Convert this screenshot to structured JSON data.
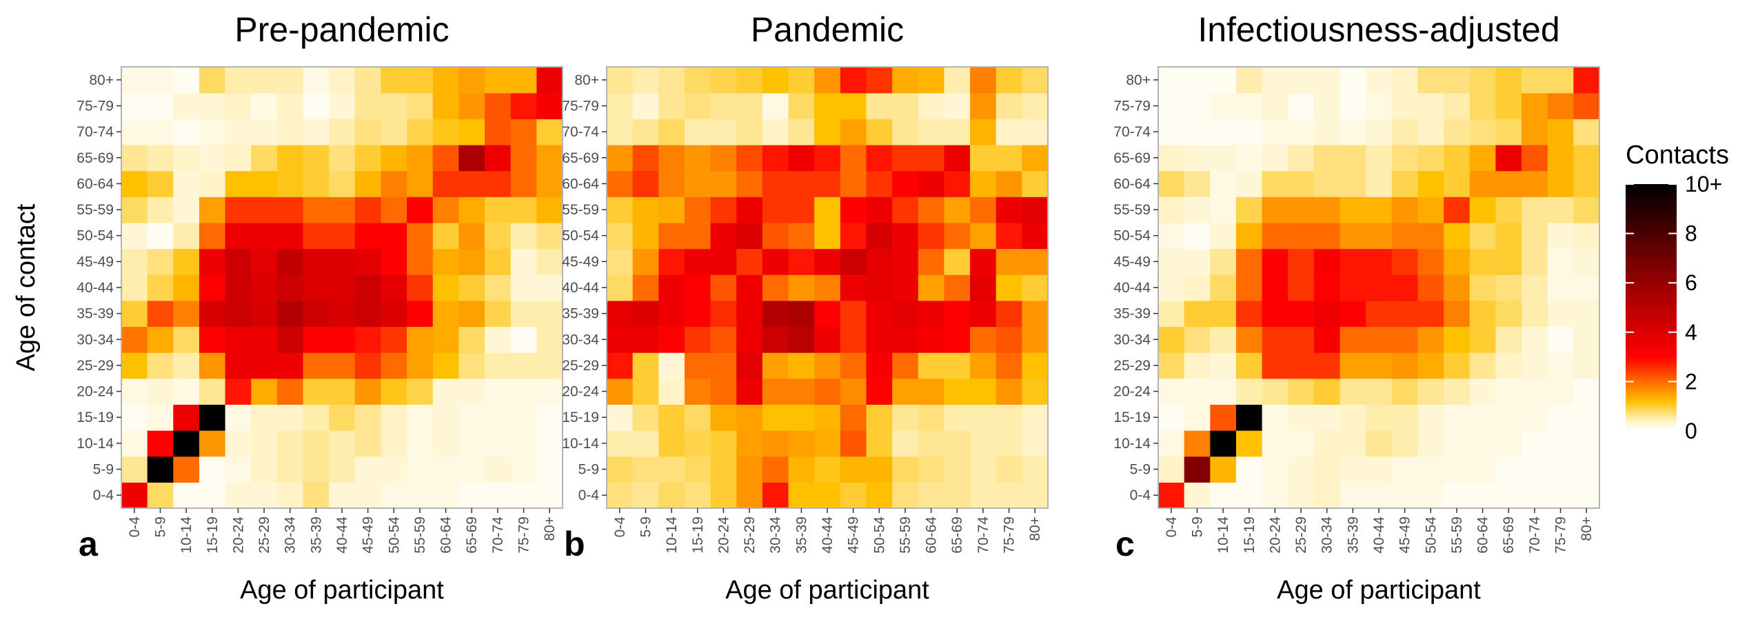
{
  "chart_data": [
    {
      "type": "heatmap",
      "panel_label": "a",
      "title": "Pre-pandemic",
      "xlabel": "Age of participant",
      "ylabel": "Age of contact",
      "x": [
        "0-4",
        "5-9",
        "10-14",
        "15-19",
        "20-24",
        "25-29",
        "30-34",
        "35-39",
        "40-44",
        "45-49",
        "50-54",
        "55-59",
        "60-64",
        "65-69",
        "70-74",
        "75-79",
        "80+"
      ],
      "y": [
        "0-4",
        "5-9",
        "10-14",
        "15-19",
        "20-24",
        "25-29",
        "30-34",
        "35-39",
        "40-44",
        "45-49",
        "50-54",
        "55-59",
        "60-64",
        "65-69",
        "70-74",
        "75-79",
        "80+"
      ],
      "values": [
        [
          3.5,
          0.8,
          0.1,
          0.1,
          0.3,
          0.3,
          0.4,
          0.7,
          0.3,
          0.3,
          0.2,
          0.2,
          0.2,
          0.1,
          0.1,
          0.1,
          0.1
        ],
        [
          0.6,
          10,
          2.0,
          0.1,
          0.2,
          0.4,
          0.5,
          0.6,
          0.5,
          0.3,
          0.3,
          0.2,
          0.2,
          0.2,
          0.3,
          0.2,
          0.1
        ],
        [
          0.2,
          3.0,
          10,
          1.6,
          0.3,
          0.4,
          0.5,
          0.6,
          0.5,
          0.6,
          0.4,
          0.2,
          0.3,
          0.2,
          0.2,
          0.2,
          0.1
        ],
        [
          0.1,
          0.2,
          3.5,
          10,
          0.2,
          0.4,
          0.4,
          0.5,
          0.8,
          0.6,
          0.4,
          0.2,
          0.3,
          0.2,
          0.2,
          0.2,
          0.1
        ],
        [
          0.2,
          0.3,
          0.2,
          0.6,
          2.8,
          1.4,
          2.0,
          1.0,
          1.0,
          1.6,
          1.1,
          0.9,
          0.3,
          0.3,
          0.2,
          0.2,
          0.2
        ],
        [
          1.2,
          0.7,
          0.5,
          1.6,
          3.5,
          3.5,
          3.5,
          2.0,
          2.0,
          2.5,
          2.0,
          1.5,
          1.2,
          0.7,
          0.5,
          0.5,
          0.5
        ],
        [
          1.9,
          1.4,
          0.8,
          3.0,
          3.5,
          3.5,
          4.5,
          3.0,
          3.0,
          2.8,
          2.5,
          1.5,
          1.4,
          0.8,
          0.3,
          0.1,
          0.5
        ],
        [
          1.0,
          2.3,
          1.8,
          4.2,
          4.5,
          4.2,
          5.2,
          4.5,
          4.2,
          4.5,
          4.0,
          3.0,
          1.4,
          1.5,
          0.9,
          0.5,
          0.5
        ],
        [
          0.5,
          0.9,
          1.3,
          3.0,
          4.5,
          4.0,
          4.5,
          4.0,
          4.0,
          4.5,
          3.8,
          2.5,
          1.2,
          1.0,
          0.7,
          0.3,
          0.3
        ],
        [
          0.5,
          0.7,
          1.1,
          3.5,
          4.5,
          3.8,
          4.8,
          4.0,
          4.0,
          3.8,
          3.0,
          2.0,
          1.4,
          1.5,
          1.0,
          0.3,
          0.5
        ],
        [
          0.3,
          0.1,
          0.5,
          2.0,
          3.5,
          3.5,
          3.5,
          2.5,
          2.5,
          3.0,
          3.0,
          2.0,
          1.0,
          1.6,
          0.9,
          0.5,
          0.7
        ],
        [
          0.8,
          0.5,
          0.3,
          1.5,
          2.5,
          2.5,
          2.5,
          2.0,
          2.0,
          2.5,
          2.0,
          3.0,
          1.8,
          1.4,
          1.0,
          1.0,
          1.3
        ],
        [
          1.2,
          1.0,
          0.3,
          0.4,
          1.2,
          1.2,
          1.1,
          1.0,
          0.8,
          1.3,
          1.8,
          1.5,
          2.5,
          2.5,
          2.5,
          2.0,
          1.5
        ],
        [
          0.6,
          0.5,
          0.4,
          0.3,
          0.4,
          0.8,
          1.1,
          1.0,
          0.7,
          1.0,
          1.3,
          1.5,
          2.2,
          5.5,
          3.5,
          2.0,
          1.5
        ],
        [
          0.2,
          0.2,
          0.1,
          0.2,
          0.3,
          0.3,
          0.4,
          0.3,
          0.5,
          0.7,
          0.6,
          0.9,
          1.1,
          1.2,
          2.2,
          2.0,
          1.0
        ],
        [
          0.1,
          0.1,
          0.3,
          0.3,
          0.4,
          0.2,
          0.4,
          0.1,
          0.3,
          0.6,
          0.6,
          0.7,
          1.3,
          1.6,
          2.2,
          2.8,
          3.2
        ],
        [
          0.2,
          0.2,
          0.1,
          0.8,
          0.5,
          0.5,
          0.5,
          0.2,
          0.4,
          0.6,
          1.0,
          1.0,
          1.3,
          1.5,
          1.3,
          1.3,
          3.5
        ]
      ]
    },
    {
      "type": "heatmap",
      "panel_label": "b",
      "title": "Pandemic",
      "xlabel": "Age of participant",
      "ylabel": "",
      "x": [
        "0-4",
        "5-9",
        "10-14",
        "15-19",
        "20-24",
        "25-29",
        "30-34",
        "35-39",
        "40-44",
        "45-49",
        "50-54",
        "55-59",
        "60-64",
        "65-69",
        "70-74",
        "75-79",
        "80+"
      ],
      "y": [
        "0-4",
        "5-9",
        "10-14",
        "15-19",
        "20-24",
        "25-29",
        "30-34",
        "35-39",
        "40-44",
        "45-49",
        "50-54",
        "55-59",
        "60-64",
        "65-69",
        "70-74",
        "75-79",
        "80+"
      ],
      "values": [
        [
          0.7,
          0.6,
          0.8,
          0.7,
          1.0,
          1.6,
          2.8,
          1.2,
          1.2,
          1.0,
          1.2,
          0.7,
          0.6,
          0.6,
          0.5,
          0.5,
          0.5
        ],
        [
          0.8,
          0.7,
          0.7,
          0.8,
          1.0,
          1.6,
          2.0,
          1.3,
          1.1,
          1.3,
          1.3,
          0.8,
          0.7,
          0.6,
          0.5,
          0.6,
          0.5
        ],
        [
          0.5,
          0.5,
          1.0,
          0.9,
          1.0,
          1.5,
          1.6,
          1.5,
          1.4,
          2.2,
          1.0,
          0.5,
          0.6,
          0.6,
          0.5,
          0.5,
          0.4
        ],
        [
          0.3,
          0.7,
          1.0,
          0.8,
          1.4,
          1.5,
          1.2,
          1.2,
          1.3,
          2.0,
          1.0,
          0.6,
          0.7,
          0.5,
          0.5,
          0.5,
          0.4
        ],
        [
          1.6,
          1.0,
          0.4,
          1.8,
          2.0,
          3.5,
          1.8,
          1.8,
          2.0,
          1.7,
          3.0,
          1.5,
          1.5,
          1.2,
          1.2,
          1.6,
          1.1
        ],
        [
          2.8,
          1.0,
          0.3,
          2.0,
          2.0,
          3.8,
          1.5,
          1.3,
          1.6,
          2.0,
          3.2,
          2.0,
          1.0,
          1.0,
          1.5,
          2.0,
          1.2
        ],
        [
          3.5,
          3.5,
          3.0,
          2.5,
          2.2,
          3.5,
          4.5,
          5.0,
          3.5,
          2.5,
          3.5,
          3.5,
          3.2,
          3.0,
          2.0,
          2.2,
          1.6
        ],
        [
          3.7,
          4.0,
          3.5,
          3.0,
          2.6,
          3.5,
          5.2,
          5.5,
          3.0,
          2.5,
          3.5,
          3.8,
          3.5,
          3.0,
          3.5,
          2.5,
          1.6
        ],
        [
          0.8,
          2.0,
          3.5,
          3.0,
          2.2,
          3.5,
          2.0,
          1.6,
          1.8,
          3.5,
          3.8,
          3.5,
          1.5,
          2.0,
          3.8,
          1.2,
          1.0
        ],
        [
          0.7,
          1.6,
          2.8,
          3.5,
          3.5,
          2.5,
          3.5,
          2.8,
          3.5,
          4.5,
          3.8,
          3.5,
          2.0,
          1.0,
          3.5,
          1.6,
          1.6
        ],
        [
          0.8,
          1.3,
          2.0,
          2.0,
          3.5,
          4.0,
          2.2,
          2.0,
          1.2,
          2.8,
          4.2,
          3.5,
          2.5,
          2.0,
          1.5,
          2.8,
          3.5
        ],
        [
          1.0,
          1.3,
          1.4,
          2.0,
          2.5,
          3.5,
          2.5,
          2.5,
          1.2,
          3.0,
          3.5,
          2.5,
          2.0,
          1.5,
          2.0,
          3.5,
          3.8
        ],
        [
          2.0,
          2.5,
          1.8,
          1.6,
          1.6,
          2.0,
          2.5,
          2.5,
          2.5,
          2.0,
          2.5,
          3.0,
          3.5,
          2.8,
          1.3,
          1.6,
          1.0
        ],
        [
          1.6,
          2.3,
          1.8,
          1.6,
          1.8,
          2.3,
          2.8,
          3.5,
          2.8,
          2.0,
          2.8,
          2.5,
          2.5,
          3.5,
          1.0,
          1.0,
          1.4
        ],
        [
          0.5,
          0.6,
          0.8,
          0.5,
          0.5,
          0.6,
          0.4,
          0.6,
          1.2,
          1.5,
          1.0,
          0.6,
          0.5,
          0.5,
          1.3,
          0.4,
          0.4
        ],
        [
          0.5,
          0.3,
          0.6,
          0.7,
          0.6,
          0.6,
          0.2,
          0.8,
          1.2,
          1.2,
          0.6,
          0.6,
          0.4,
          0.3,
          1.6,
          0.6,
          0.5
        ],
        [
          0.6,
          0.5,
          0.6,
          0.8,
          0.9,
          1.0,
          1.2,
          1.0,
          1.6,
          2.8,
          2.5,
          1.4,
          1.3,
          0.5,
          1.8,
          1.0,
          0.8
        ]
      ]
    },
    {
      "type": "heatmap",
      "panel_label": "c",
      "title": "Infectiousness-adjusted",
      "xlabel": "Age of participant",
      "ylabel": "",
      "x": [
        "0-4",
        "5-9",
        "10-14",
        "15-19",
        "20-24",
        "25-29",
        "30-34",
        "35-39",
        "40-44",
        "45-49",
        "50-54",
        "55-59",
        "60-64",
        "65-69",
        "70-74",
        "75-79",
        "80+"
      ],
      "y": [
        "0-4",
        "5-9",
        "10-14",
        "15-19",
        "20-24",
        "25-29",
        "30-34",
        "35-39",
        "40-44",
        "45-49",
        "50-54",
        "55-59",
        "60-64",
        "65-69",
        "70-74",
        "75-79",
        "80+"
      ],
      "values": [
        [
          2.8,
          0.3,
          0.1,
          0.1,
          0.2,
          0.3,
          0.4,
          0.2,
          0.2,
          0.2,
          0.2,
          0.1,
          0.1,
          0.1,
          0.1,
          0.1,
          0.1
        ],
        [
          0.4,
          6.5,
          1.3,
          0.1,
          0.2,
          0.3,
          0.4,
          0.3,
          0.3,
          0.2,
          0.2,
          0.2,
          0.2,
          0.1,
          0.1,
          0.1,
          0.1
        ],
        [
          0.2,
          1.8,
          10,
          1.2,
          0.2,
          0.2,
          0.4,
          0.4,
          0.6,
          0.5,
          0.3,
          0.2,
          0.2,
          0.2,
          0.1,
          0.1,
          0.1
        ],
        [
          0.1,
          0.2,
          2.2,
          10,
          0.2,
          0.3,
          0.3,
          0.4,
          0.5,
          0.5,
          0.3,
          0.2,
          0.2,
          0.2,
          0.2,
          0.1,
          0.1
        ],
        [
          0.2,
          0.2,
          0.2,
          0.5,
          0.6,
          0.8,
          1.0,
          0.6,
          0.6,
          0.8,
          0.6,
          0.5,
          0.3,
          0.2,
          0.2,
          0.2,
          0.1
        ],
        [
          0.8,
          0.4,
          0.3,
          1.0,
          2.5,
          2.5,
          2.5,
          1.5,
          1.5,
          1.6,
          1.4,
          1.0,
          0.6,
          0.4,
          0.3,
          0.2,
          0.3
        ],
        [
          1.0,
          0.7,
          0.5,
          1.8,
          2.5,
          2.5,
          3.2,
          2.0,
          2.0,
          2.0,
          1.6,
          1.2,
          1.0,
          0.5,
          0.3,
          0.1,
          0.3
        ],
        [
          0.5,
          1.0,
          1.0,
          2.5,
          3.0,
          3.0,
          3.5,
          3.0,
          2.5,
          2.5,
          2.5,
          1.8,
          1.0,
          0.8,
          0.5,
          0.3,
          0.3
        ],
        [
          0.3,
          0.4,
          0.8,
          2.0,
          3.0,
          2.5,
          3.0,
          2.8,
          2.8,
          2.8,
          2.2,
          1.6,
          0.8,
          0.7,
          0.5,
          0.2,
          0.2
        ],
        [
          0.3,
          0.3,
          0.6,
          2.0,
          3.0,
          2.5,
          3.2,
          2.8,
          2.8,
          2.5,
          2.0,
          1.4,
          1.0,
          1.0,
          0.6,
          0.2,
          0.3
        ],
        [
          0.2,
          0.1,
          0.3,
          1.3,
          2.0,
          2.0,
          2.0,
          1.6,
          1.6,
          1.8,
          1.8,
          1.2,
          0.8,
          1.0,
          0.6,
          0.3,
          0.4
        ],
        [
          0.4,
          0.3,
          0.2,
          0.9,
          1.6,
          1.6,
          1.6,
          1.3,
          1.3,
          1.6,
          1.4,
          2.5,
          1.2,
          0.9,
          0.6,
          0.6,
          0.8
        ],
        [
          0.8,
          0.6,
          0.2,
          0.3,
          0.8,
          0.8,
          0.7,
          0.7,
          0.5,
          0.9,
          1.2,
          1.0,
          1.6,
          1.6,
          1.6,
          1.3,
          1.0
        ],
        [
          0.4,
          0.3,
          0.3,
          0.2,
          0.3,
          0.5,
          0.7,
          0.7,
          0.5,
          0.7,
          0.8,
          1.0,
          1.4,
          3.5,
          2.2,
          1.3,
          1.0
        ],
        [
          0.1,
          0.1,
          0.1,
          0.1,
          0.2,
          0.2,
          0.3,
          0.2,
          0.3,
          0.5,
          0.4,
          0.6,
          0.7,
          0.8,
          1.5,
          1.3,
          0.7
        ],
        [
          0.1,
          0.1,
          0.2,
          0.2,
          0.3,
          0.1,
          0.3,
          0.1,
          0.2,
          0.4,
          0.4,
          0.5,
          0.8,
          1.0,
          1.5,
          1.8,
          2.2
        ],
        [
          0.1,
          0.1,
          0.1,
          0.5,
          0.3,
          0.3,
          0.3,
          0.1,
          0.3,
          0.4,
          0.7,
          0.7,
          0.8,
          1.0,
          0.8,
          0.8,
          2.8
        ]
      ]
    }
  ],
  "legend": {
    "title": "Contacts",
    "ticks": [
      {
        "value": 10,
        "label": "10+"
      },
      {
        "value": 8,
        "label": "8"
      },
      {
        "value": 6,
        "label": "6"
      },
      {
        "value": 4,
        "label": "4"
      },
      {
        "value": 2,
        "label": "2"
      },
      {
        "value": 0,
        "label": "0"
      }
    ],
    "range": [
      0,
      10
    ],
    "colors": [
      "#FFFFFF",
      "#FFF3C7",
      "#FFC000",
      "#FF8000",
      "#FF0000",
      "#AA0000",
      "#000000"
    ],
    "color_stops": [
      0,
      0.04,
      0.12,
      0.18,
      0.3,
      0.55,
      1.0
    ]
  },
  "colors": {
    "panel_border": "#b3b3b3",
    "tick_text": "#4d4d4d"
  }
}
